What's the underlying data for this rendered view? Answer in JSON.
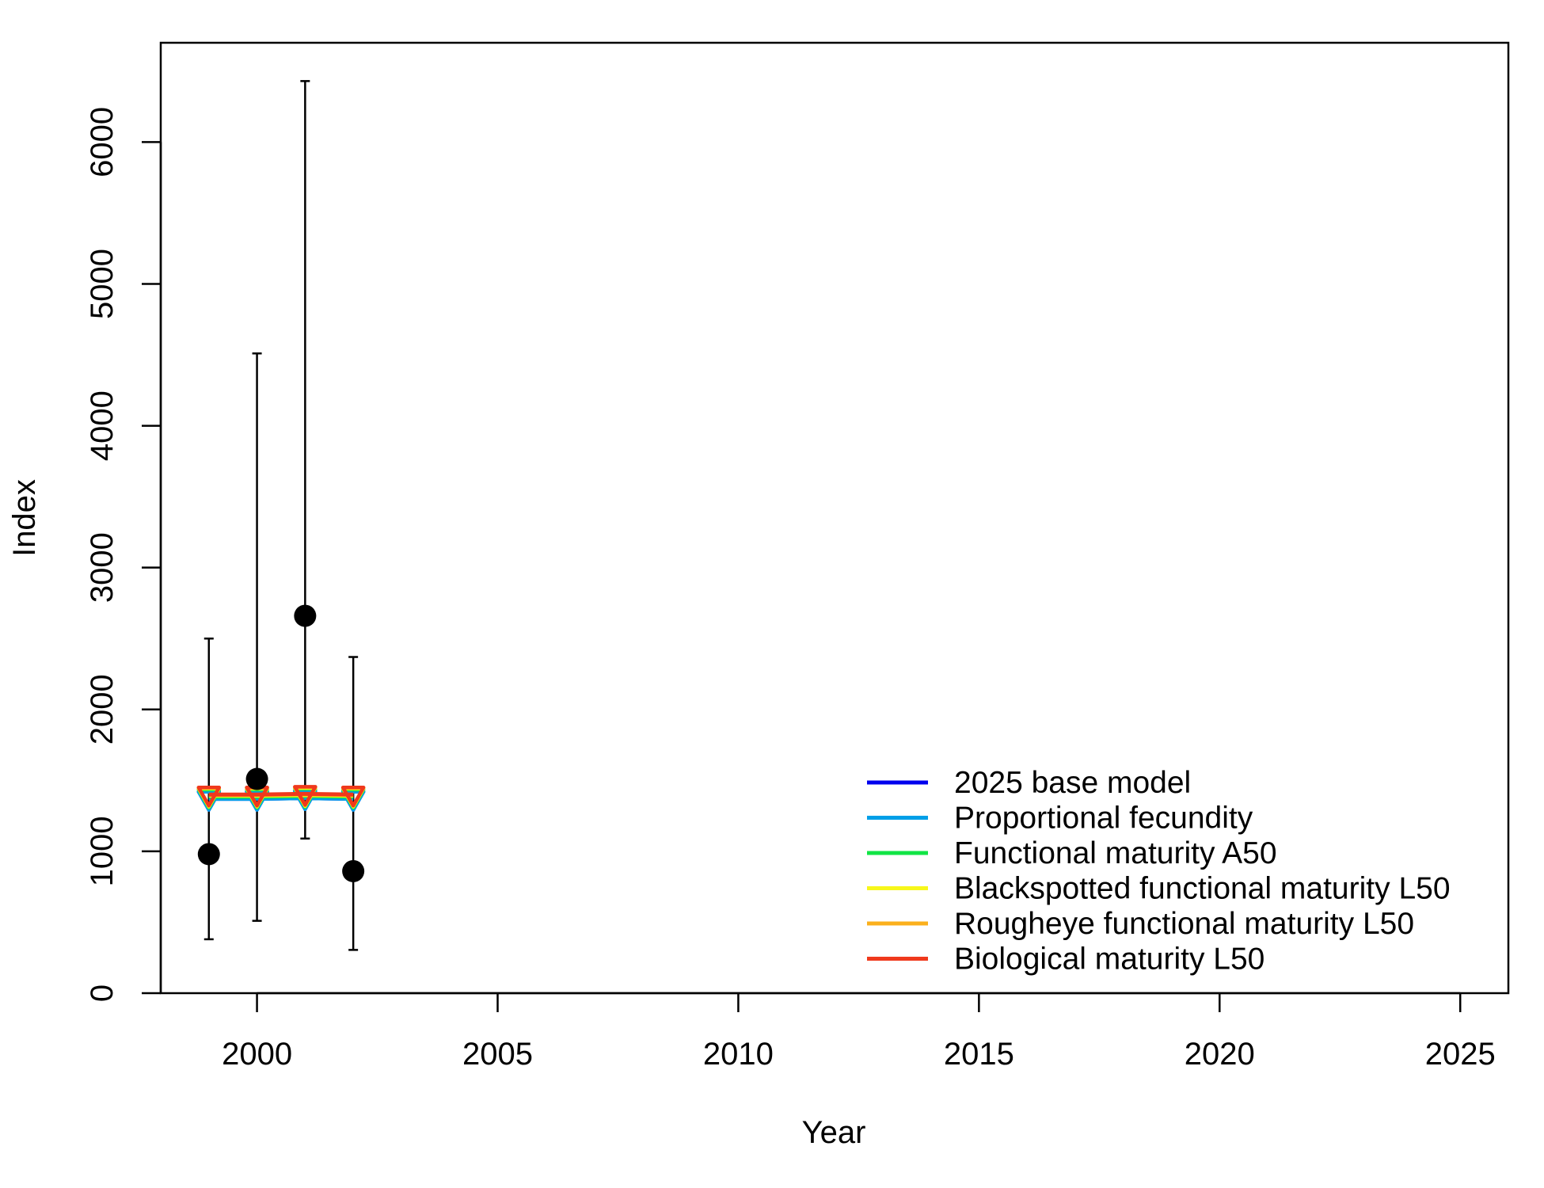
{
  "chart_data": {
    "type": "scatter",
    "title": "",
    "xlabel": "Year",
    "ylabel": "Index",
    "xlim": [
      1998,
      2026
    ],
    "ylim": [
      0,
      6700
    ],
    "x_ticks": [
      2000,
      2005,
      2010,
      2015,
      2020,
      2025
    ],
    "y_ticks": [
      0,
      1000,
      2000,
      3000,
      4000,
      5000,
      6000
    ],
    "grid": false,
    "legend_position": "bottom-right",
    "observed": {
      "x": [
        1999,
        2000,
        2001,
        2002
      ],
      "y": [
        980,
        1510,
        2660,
        860
      ],
      "lower": [
        380,
        510,
        1090,
        305
      ],
      "upper": [
        2500,
        4510,
        6430,
        2370
      ],
      "color": "#000000"
    },
    "series": [
      {
        "name": "2025 base model",
        "color": "#0000ee",
        "x": [
          1999,
          2000,
          2001,
          2002
        ],
        "values": [
          1370,
          1370,
          1375,
          1370
        ]
      },
      {
        "name": "Proportional fecundity",
        "color": "#009fe8",
        "x": [
          1999,
          2000,
          2001,
          2002
        ],
        "values": [
          1370,
          1370,
          1375,
          1370
        ]
      },
      {
        "name": "Functional maturity A50",
        "color": "#11e545",
        "x": [
          1999,
          2000,
          2001,
          2002
        ],
        "values": [
          1385,
          1385,
          1390,
          1385
        ]
      },
      {
        "name": "Blackspotted functional maturity L50",
        "color": "#f7f71a",
        "x": [
          1999,
          2000,
          2001,
          2002
        ],
        "values": [
          1392,
          1392,
          1396,
          1392
        ]
      },
      {
        "name": "Rougheye functional maturity L50",
        "color": "#fbb01c",
        "x": [
          1999,
          2000,
          2001,
          2002
        ],
        "values": [
          1398,
          1398,
          1402,
          1398
        ]
      },
      {
        "name": "Biological maturity L50",
        "color": "#f0391c",
        "x": [
          1999,
          2000,
          2001,
          2002
        ],
        "values": [
          1400,
          1400,
          1405,
          1400
        ]
      }
    ]
  }
}
